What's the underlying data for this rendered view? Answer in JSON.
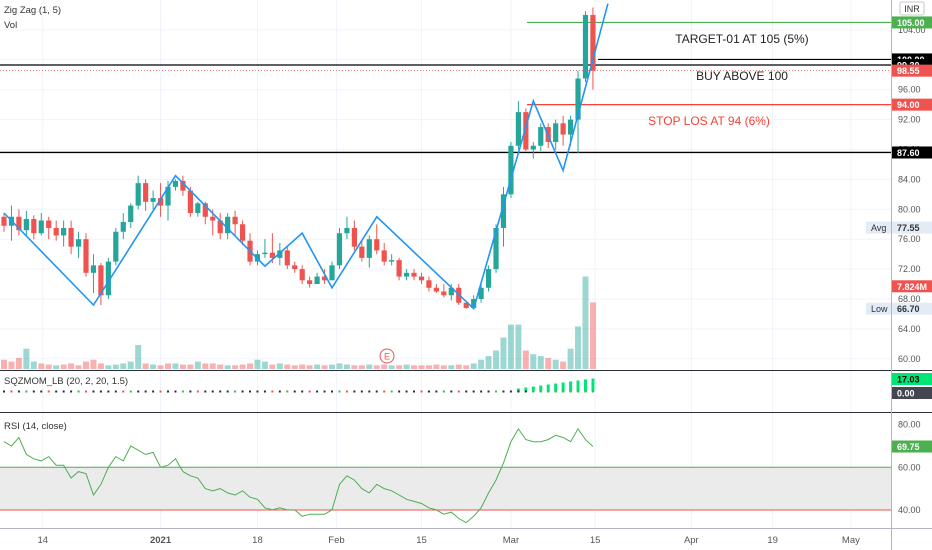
{
  "legend": {
    "zigzag": "Zig Zag (1, 5)",
    "vol": "Vol"
  },
  "currency": "INR",
  "price_axis": [
    "104.00",
    "100.00",
    "96.00",
    "92.00",
    "88.00",
    "84.00",
    "80.00",
    "76.00",
    "72.00",
    "68.00",
    "64.00",
    "60.00"
  ],
  "axis_tags": [
    {
      "text": "105.00",
      "bg": "#4caf50",
      "fg": "#ffffff",
      "price": 105
    },
    {
      "text": "100.00",
      "bg": "#000000",
      "fg": "#ffffff",
      "price": 100.05
    },
    {
      "text": "99.30",
      "bg": "#000000",
      "fg": "#ffffff",
      "price": 99.3
    },
    {
      "text": "98.55",
      "bg": "#ef5350",
      "fg": "#ffffff",
      "price": 98.55
    },
    {
      "text": "94.00",
      "bg": "#ef5350",
      "fg": "#ffffff",
      "price": 94
    },
    {
      "text": "87.60",
      "bg": "#000000",
      "fg": "#ffffff",
      "price": 87.6
    },
    {
      "text": "77.55",
      "bg": "#e3ebf7",
      "fg": "#333333",
      "price": 77.55,
      "prefix": "Avg"
    },
    {
      "text": "7.824M",
      "bg": "#ef5350",
      "fg": "#ffffff",
      "price": 69.7
    },
    {
      "text": "66.70",
      "bg": "#e3ebf7",
      "fg": "#333333",
      "price": 66.7,
      "prefix": "Low"
    }
  ],
  "annotations": {
    "target": "TARGET-01 AT 105  (5%)",
    "buy": "BUY ABOVE 100",
    "stop": "STOP LOS AT 94  (6%)"
  },
  "earnings_marker": "E",
  "sqzmom": {
    "title": "SQZMOM_LB (20, 2, 20, 1.5)",
    "tags": [
      "17.03",
      "0.00"
    ]
  },
  "rsi": {
    "title": "RSI (14, close)",
    "axis": [
      "80.00",
      "60.00",
      "40.00"
    ],
    "tag": "69.75",
    "upper": 60,
    "lower": 40
  },
  "x_axis": [
    "14",
    "2021",
    "18",
    "Feb",
    "15",
    "Mar",
    "15",
    "Apr",
    "19",
    "May"
  ],
  "colors": {
    "up": "#26a69a",
    "down": "#ef5350",
    "zigzag": "#2196f3",
    "target": "#4caf50",
    "stop": "#f44336",
    "rsi": "#4caf50"
  },
  "chart_data": {
    "type": "candlestick",
    "symbol_currency": "INR",
    "candles": [
      [
        79,
        79.5,
        77,
        77.8
      ],
      [
        77.8,
        80.5,
        75.8,
        79
      ],
      [
        79,
        80,
        76.5,
        77.2
      ],
      [
        77.2,
        79.8,
        76.5,
        78.7
      ],
      [
        78.7,
        79.2,
        76,
        76.8
      ],
      [
        76.8,
        79.5,
        76.5,
        78.5
      ],
      [
        78.5,
        79,
        76,
        77.5
      ],
      [
        77.5,
        78.5,
        75.8,
        76.5
      ],
      [
        76.5,
        78.5,
        75,
        77.5
      ],
      [
        77.5,
        78.5,
        74,
        75
      ],
      [
        75,
        77,
        73.5,
        76
      ],
      [
        76,
        76.8,
        71,
        71.5
      ],
      [
        71.5,
        74,
        68.8,
        72.5
      ],
      [
        72.5,
        72.8,
        67.2,
        68.5
      ],
      [
        68.5,
        73.5,
        68,
        73
      ],
      [
        73,
        77.5,
        72.5,
        77
      ],
      [
        77,
        79.5,
        76,
        78.3
      ],
      [
        78.3,
        80.8,
        77.5,
        80.5
      ],
      [
        80.5,
        84.5,
        80,
        83.5
      ],
      [
        83.5,
        84,
        79.8,
        81
      ],
      [
        81,
        82.5,
        80,
        81.5
      ],
      [
        81.5,
        83.5,
        79,
        80.5
      ],
      [
        80.5,
        83.8,
        78.5,
        83
      ],
      [
        83,
        84,
        82.5,
        83.8
      ],
      [
        83.8,
        84.5,
        81.8,
        82.5
      ],
      [
        82.5,
        83,
        79,
        79.5
      ],
      [
        79.5,
        81,
        79,
        80.8
      ],
      [
        80.8,
        81,
        78,
        79
      ],
      [
        79,
        80,
        76.5,
        78.5
      ],
      [
        78.5,
        79.5,
        76,
        76.8
      ],
      [
        76.8,
        79.5,
        76,
        79
      ],
      [
        79,
        79.8,
        76.5,
        78
      ],
      [
        78,
        78.5,
        75.2,
        75.8
      ],
      [
        75.8,
        76.8,
        72.5,
        73
      ],
      [
        73,
        74.5,
        72.5,
        74
      ],
      [
        74,
        76,
        73.5,
        74.2
      ],
      [
        74.2,
        76.8,
        72.8,
        73.5
      ],
      [
        73.5,
        75.5,
        72.5,
        74.5
      ],
      [
        74.5,
        75,
        72,
        72.5
      ],
      [
        72.5,
        73,
        71.5,
        72
      ],
      [
        72,
        72.5,
        70,
        70.5
      ],
      [
        70.5,
        71,
        69.5,
        70
      ],
      [
        70,
        71.5,
        70,
        71
      ],
      [
        71,
        72,
        70,
        70.5
      ],
      [
        70.5,
        73,
        70.5,
        72.5
      ],
      [
        72.5,
        77.5,
        72,
        76.8
      ],
      [
        76.8,
        79,
        76,
        77.5
      ],
      [
        77.5,
        78.5,
        74.5,
        75
      ],
      [
        75,
        75.8,
        73,
        73.5
      ],
      [
        73.5,
        76.5,
        72.2,
        76
      ],
      [
        76,
        78,
        74,
        74.5
      ],
      [
        74.5,
        75.5,
        72.5,
        73
      ],
      [
        73,
        74,
        72.5,
        73.2
      ],
      [
        73.2,
        73.5,
        70.5,
        71
      ],
      [
        71,
        72,
        70.5,
        71.5
      ],
      [
        71.5,
        72,
        70.5,
        71
      ],
      [
        71,
        71.5,
        70,
        70.5
      ],
      [
        70.5,
        71,
        69,
        69.5
      ],
      [
        69.5,
        70,
        68.8,
        69
      ],
      [
        69,
        70,
        68.2,
        68.5
      ],
      [
        68.5,
        70,
        67.8,
        69.5
      ],
      [
        69.5,
        70,
        67.2,
        67.5
      ],
      [
        67.5,
        67.5,
        66.7,
        66.8
      ],
      [
        66.8,
        68.5,
        66.8,
        68
      ],
      [
        68,
        70,
        67.5,
        69.5
      ],
      [
        69.5,
        72.5,
        69,
        72
      ],
      [
        72,
        78,
        71.5,
        77.5
      ],
      [
        77.5,
        83,
        75,
        82
      ],
      [
        82,
        89,
        81.5,
        88.5
      ],
      [
        88.5,
        94.5,
        88,
        93
      ],
      [
        93,
        93.5,
        87.8,
        88
      ],
      [
        88,
        89,
        86.8,
        88.5
      ],
      [
        88.5,
        91.5,
        87.8,
        91
      ],
      [
        91,
        91.5,
        88.2,
        89
      ],
      [
        89,
        92,
        88,
        91.5
      ],
      [
        91.5,
        92.5,
        88.5,
        90
      ],
      [
        90,
        92.5,
        88.5,
        92
      ],
      [
        92,
        98.5,
        87.5,
        97.5
      ],
      [
        97.5,
        106.5,
        97,
        106
      ],
      [
        106,
        107,
        96,
        98.55
      ]
    ],
    "volume_share": [
      0.25,
      0.2,
      0.3,
      0.55,
      0.2,
      0.15,
      0.12,
      0.1,
      0.12,
      0.15,
      0.1,
      0.2,
      0.25,
      0.15,
      0.1,
      0.12,
      0.15,
      0.2,
      0.65,
      0.15,
      0.12,
      0.1,
      0.15,
      0.15,
      0.12,
      0.12,
      0.2,
      0.15,
      0.15,
      0.12,
      0.1,
      0.1,
      0.12,
      0.15,
      0.25,
      0.2,
      0.12,
      0.15,
      0.12,
      0.1,
      0.12,
      0.1,
      0.12,
      0.1,
      0.12,
      0.15,
      0.12,
      0.1,
      0.1,
      0.12,
      0.1,
      0.12,
      0.1,
      0.1,
      0.12,
      0.1,
      0.1,
      0.1,
      0.12,
      0.1,
      0.1,
      0.12,
      0.1,
      0.15,
      0.25,
      0.35,
      0.5,
      0.85,
      1.2,
      1.2,
      0.5,
      0.4,
      0.35,
      0.3,
      0.25,
      0.2,
      0.55,
      1.15,
      2.5,
      1.8
    ],
    "volume_color": [
      "down",
      "down",
      "down",
      "up",
      "up",
      "down",
      "down",
      "up",
      "down",
      "down",
      "down",
      "down",
      "down",
      "down",
      "up",
      "up",
      "up",
      "up",
      "up",
      "down",
      "up",
      "down",
      "down",
      "up",
      "down",
      "down",
      "up",
      "down",
      "down",
      "down",
      "up",
      "down",
      "down",
      "down",
      "up",
      "up",
      "down",
      "up",
      "down",
      "down",
      "down",
      "down",
      "up",
      "down",
      "up",
      "up",
      "up",
      "down",
      "down",
      "up",
      "down",
      "down",
      "up",
      "down",
      "up",
      "down",
      "down",
      "down",
      "down",
      "down",
      "up",
      "down",
      "down",
      "up",
      "up",
      "up",
      "up",
      "up",
      "up",
      "up",
      "down",
      "up",
      "up",
      "down",
      "up",
      "down",
      "up",
      "up",
      "up",
      "down"
    ],
    "zigzag": [
      [
        0,
        79.5
      ],
      [
        12,
        67.2
      ],
      [
        23,
        84.5
      ],
      [
        35,
        72.4
      ],
      [
        40,
        76.8
      ],
      [
        44,
        69.5
      ],
      [
        50,
        79
      ],
      [
        63,
        66.7
      ],
      [
        71,
        94.5
      ],
      [
        75,
        85.2
      ],
      [
        81,
        107.5
      ]
    ],
    "levels": {
      "target": 105,
      "buy_high": 100.05,
      "buy_low": 99.3,
      "current": 98.55,
      "stop": 94,
      "support": 87.6
    },
    "y_range": [
      58.5,
      108
    ],
    "rsi_values": [
      72,
      70,
      74,
      66,
      64,
      63,
      65,
      61,
      61,
      55,
      58,
      57,
      47,
      52,
      60,
      65,
      63,
      70,
      68,
      66,
      67,
      60,
      61,
      64,
      58,
      56,
      55,
      50,
      49,
      50,
      48,
      47,
      49,
      46,
      45,
      41,
      40,
      41,
      40,
      40,
      37,
      38,
      38,
      38,
      40,
      52,
      56,
      54,
      50,
      48,
      52,
      50,
      49,
      47,
      45,
      44,
      43,
      41,
      40,
      38,
      39,
      36,
      34,
      37,
      41,
      48,
      54,
      62,
      72,
      78,
      73,
      72,
      72,
      73,
      75,
      74,
      72,
      78,
      73,
      69.75
    ],
    "rsi_range": [
      32,
      85
    ],
    "sqzmom_first_up": 69
  }
}
